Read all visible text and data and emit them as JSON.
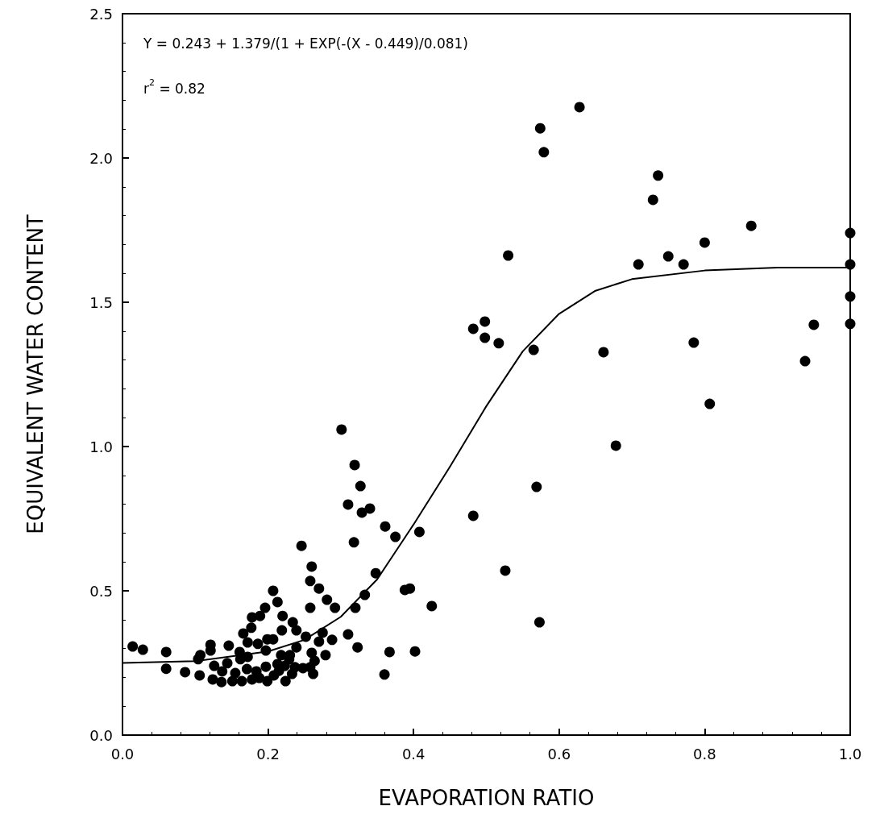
{
  "chart_data": {
    "type": "scatter",
    "xlabel": "EVAPORATION RATIO",
    "ylabel": "EQUIVALENT WATER CONTENT",
    "annotations": [
      "Y = 0.243 + 1.379/(1 + EXP(-(X - 0.449)/0.081)",
      "r$^{2}$ = 0.82"
    ],
    "xlim": [
      0,
      1
    ],
    "ylim": [
      0,
      2.5
    ],
    "xticks": [
      {
        "value": 0,
        "label": "0.0"
      },
      {
        "value": 0.2,
        "label": "0.2"
      },
      {
        "value": 0.4,
        "label": "0.4"
      },
      {
        "value": 0.6,
        "label": "0.6"
      },
      {
        "value": 0.8,
        "label": "0.8"
      },
      {
        "value": 1,
        "label": "1.0"
      }
    ],
    "yticks": [
      {
        "value": 0,
        "label": "0.0"
      },
      {
        "value": 0.5,
        "label": "0.5"
      },
      {
        "value": 1,
        "label": "1.0"
      },
      {
        "value": 1.5,
        "label": "1.5"
      },
      {
        "value": 2,
        "label": "2.0"
      },
      {
        "value": 2.5,
        "label": "2.5"
      }
    ],
    "grid": false,
    "marker": "circle",
    "series": [
      {
        "color": "#000000",
        "x": [
          0.014,
          0.028,
          0.06,
          0.246,
          0.318,
          0.26,
          0.258,
          0.27,
          0.207,
          0.213,
          0.196,
          0.189,
          0.178,
          0.22,
          0.258,
          0.281,
          0.292,
          0.32,
          0.177,
          0.166,
          0.219,
          0.234,
          0.239,
          0.252,
          0.275,
          0.288,
          0.31,
          0.323,
          0.27,
          0.199,
          0.207,
          0.186,
          0.172,
          0.146,
          0.121,
          0.121,
          0.107,
          0.161,
          0.26,
          0.279,
          0.239,
          0.218,
          0.23,
          0.197,
          0.144,
          0.162,
          0.104,
          0.06,
          0.086,
          0.106,
          0.124,
          0.136,
          0.151,
          0.164,
          0.178,
          0.188,
          0.199,
          0.208,
          0.215,
          0.224,
          0.233,
          0.137,
          0.126,
          0.155,
          0.171,
          0.184,
          0.197,
          0.213,
          0.223,
          0.237,
          0.248,
          0.258,
          0.264,
          0.229,
          0.172,
          0.262,
          0.301,
          0.319,
          0.327,
          0.31,
          0.329,
          0.34,
          0.361,
          0.375,
          0.408,
          0.348,
          0.333,
          0.388,
          0.395,
          0.425,
          0.367,
          0.402,
          0.36,
          0.482,
          0.569,
          0.678,
          0.526,
          0.573,
          0.628,
          0.574,
          0.579,
          0.736,
          0.729,
          0.864,
          0.8,
          0.75,
          0.771,
          0.709,
          0.53,
          1.0,
          1.0,
          1.0,
          1.0,
          0.95,
          0.938,
          0.785,
          0.807,
          0.661,
          0.565,
          0.482,
          0.498,
          0.498,
          0.517
        ],
        "values": [
          0.307,
          0.296,
          0.288,
          0.656,
          0.668,
          0.584,
          0.534,
          0.508,
          0.5,
          0.461,
          0.441,
          0.413,
          0.408,
          0.413,
          0.441,
          0.469,
          0.441,
          0.441,
          0.372,
          0.352,
          0.363,
          0.391,
          0.363,
          0.341,
          0.355,
          0.33,
          0.349,
          0.304,
          0.324,
          0.332,
          0.332,
          0.316,
          0.321,
          0.31,
          0.313,
          0.293,
          0.277,
          0.288,
          0.285,
          0.277,
          0.304,
          0.277,
          0.277,
          0.293,
          0.249,
          0.263,
          0.263,
          0.23,
          0.218,
          0.207,
          0.193,
          0.184,
          0.187,
          0.187,
          0.193,
          0.198,
          0.187,
          0.207,
          0.223,
          0.187,
          0.212,
          0.221,
          0.24,
          0.215,
          0.229,
          0.221,
          0.237,
          0.246,
          0.24,
          0.235,
          0.232,
          0.235,
          0.257,
          0.263,
          0.271,
          0.212,
          1.059,
          0.936,
          0.863,
          0.799,
          0.771,
          0.785,
          0.723,
          0.687,
          0.704,
          0.561,
          0.486,
          0.503,
          0.508,
          0.447,
          0.288,
          0.29,
          0.21,
          0.76,
          0.86,
          1.003,
          0.57,
          0.391,
          2.176,
          2.103,
          2.02,
          1.939,
          1.855,
          1.765,
          1.707,
          1.659,
          1.631,
          1.631,
          1.662,
          1.74,
          1.631,
          1.52,
          1.425,
          1.422,
          1.296,
          1.36,
          1.148,
          1.327,
          1.335,
          1.408,
          1.433,
          1.377,
          1.358
        ]
      },
      {
        "type": "line",
        "color": "#000000",
        "marker": "none",
        "line_style": "solid",
        "x": [
          0,
          0.1,
          0.2,
          0.25,
          0.3,
          0.35,
          0.4,
          0.45,
          0.5,
          0.55,
          0.6,
          0.65,
          0.7,
          0.8,
          0.9,
          1.0
        ],
        "values": [
          0.25,
          0.256,
          0.29,
          0.33,
          0.41,
          0.54,
          0.73,
          0.93,
          1.14,
          1.33,
          1.46,
          1.54,
          1.58,
          1.61,
          1.62,
          1.62
        ]
      }
    ]
  }
}
